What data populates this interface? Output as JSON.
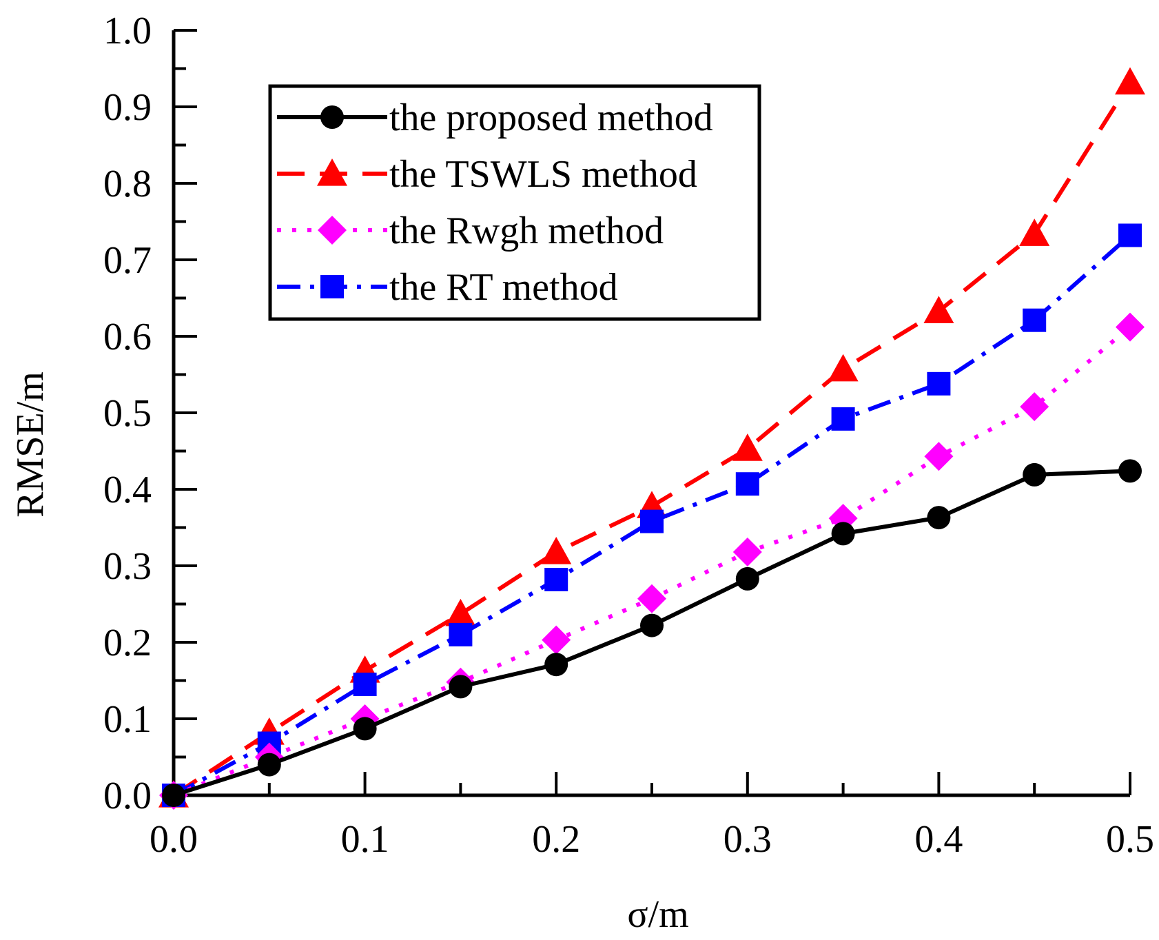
{
  "chart_data": {
    "type": "line",
    "title": "",
    "xlabel": "σ/m",
    "ylabel": "RMSE/m",
    "xlim": [
      0.0,
      0.5
    ],
    "ylim": [
      0.0,
      1.0
    ],
    "x_ticks": [
      "0.0",
      "0.1",
      "0.2",
      "0.3",
      "0.4",
      "0.5"
    ],
    "y_ticks": [
      "0.0",
      "0.1",
      "0.2",
      "0.3",
      "0.4",
      "0.5",
      "0.6",
      "0.7",
      "0.8",
      "0.9",
      "1.0"
    ],
    "grid": false,
    "legend_position": "top-left",
    "x": [
      0.0,
      0.05,
      0.1,
      0.15,
      0.2,
      0.25,
      0.3,
      0.35,
      0.4,
      0.45,
      0.5
    ],
    "series": [
      {
        "name": "the proposed method",
        "color": "#000000",
        "dash": "solid",
        "marker": "circle",
        "values": [
          0.0,
          0.04,
          0.087,
          0.142,
          0.171,
          0.222,
          0.283,
          0.342,
          0.363,
          0.419,
          0.424
        ]
      },
      {
        "name": "the TSWLS method",
        "color": "#ff0000",
        "dash": "dash",
        "marker": "triangle",
        "values": [
          0.0,
          0.082,
          0.163,
          0.237,
          0.318,
          0.378,
          0.453,
          0.557,
          0.633,
          0.734,
          0.932
        ]
      },
      {
        "name": "the Rwgh method",
        "color": "#ff00ff",
        "dash": "dot",
        "marker": "diamond",
        "values": [
          0.0,
          0.05,
          0.1,
          0.148,
          0.203,
          0.257,
          0.318,
          0.362,
          0.443,
          0.508,
          0.612
        ]
      },
      {
        "name": "the RT method",
        "color": "#0000ff",
        "dash": "dashdot",
        "marker": "square",
        "values": [
          0.0,
          0.068,
          0.145,
          0.21,
          0.282,
          0.358,
          0.407,
          0.492,
          0.538,
          0.621,
          0.732
        ]
      }
    ]
  }
}
